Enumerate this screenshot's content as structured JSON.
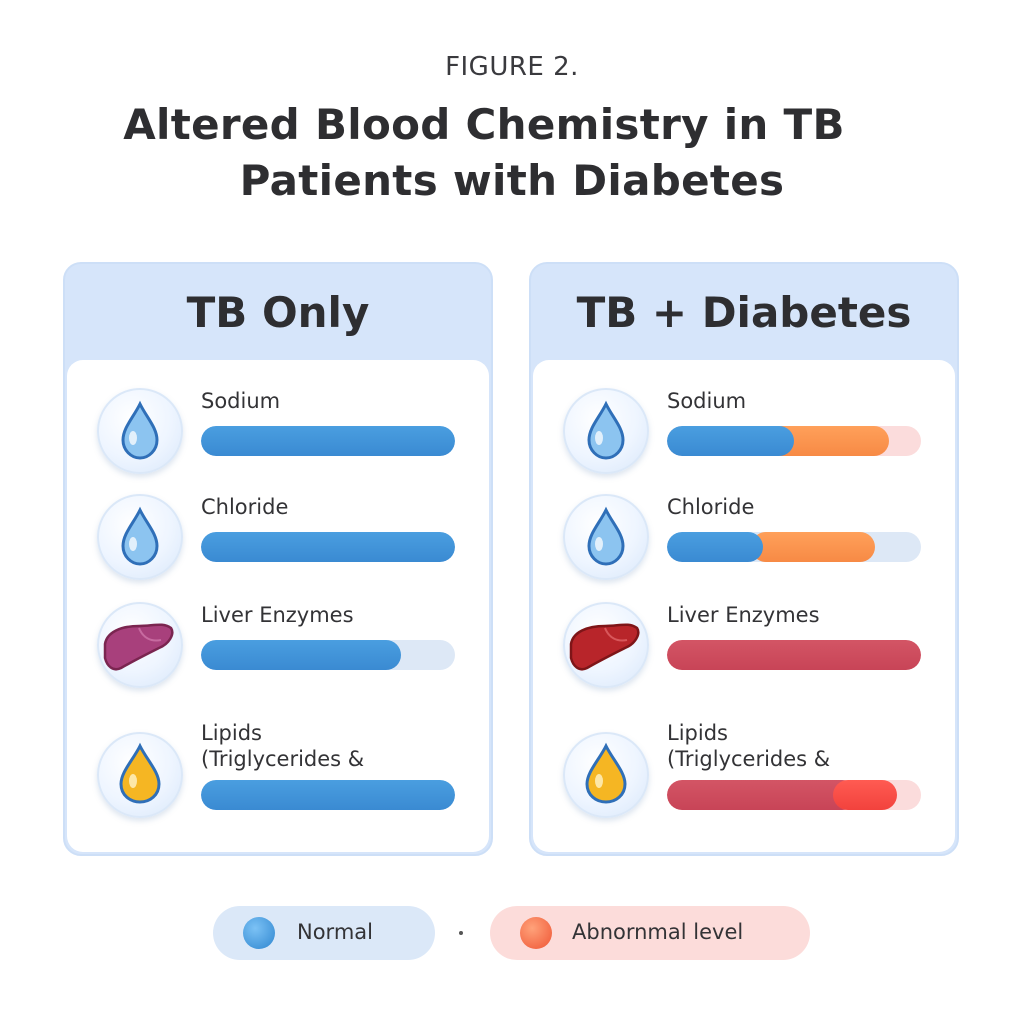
{
  "figure_label": "FIGURE 2.",
  "title_line1": "Altered Blood Chemistry in TB",
  "title_line2": "Patients with Diabetes",
  "panels": {
    "left": {
      "title": "TB Only",
      "rows": [
        {
          "label": "Sodium",
          "icon": "water-drop-icon",
          "normal_fraction": 1.0
        },
        {
          "label": "Chloride",
          "icon": "water-drop-icon",
          "normal_fraction": 1.0
        },
        {
          "label": "Liver Enzymes",
          "icon": "liver-icon",
          "normal_fraction": 0.79
        },
        {
          "label": "Lipids",
          "label2": "(Triglycerides &",
          "icon": "oil-drop-icon",
          "normal_fraction": 1.0
        }
      ]
    },
    "right": {
      "title": "TB + Diabetes",
      "rows": [
        {
          "label": "Sodium",
          "icon": "water-drop-icon",
          "normal_fraction": 0.5,
          "abnormal_fraction": 0.43
        },
        {
          "label": "Chloride",
          "icon": "water-drop-icon",
          "normal_fraction": 0.38,
          "abnormal_fraction": 0.5
        },
        {
          "label": "Liver Enzymes",
          "icon": "liver-icon",
          "abnormal_fraction": 1.0
        },
        {
          "label": "Lipids",
          "label2": "(Triglycerides &",
          "icon": "oil-drop-icon",
          "abnormal_fraction": 0.9
        }
      ]
    }
  },
  "legend": {
    "normal": "Normal",
    "abnormal": "Abnornmal level"
  },
  "colors": {
    "normal": "#3a8ad2",
    "abnormal_orange": "#f78a45",
    "abnormal_red": "#c84457",
    "abnormal_coral": "#f2423d"
  }
}
